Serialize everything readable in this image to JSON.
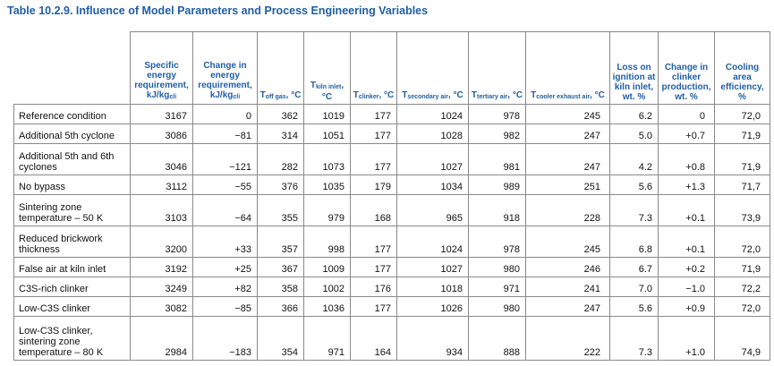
{
  "title": "Table 10.2.9. Influence of Model Parameters and Process Engineering Variables",
  "headers": [
    {
      "pre": "Specific energy requirement, kJ/kg",
      "sub": "cli",
      "post": ""
    },
    {
      "pre": "Change in energy requirement, kJ/kg",
      "sub": "cli",
      "post": ""
    },
    {
      "pre": "T",
      "sub": "off gas",
      "post": ", °C"
    },
    {
      "pre": "T",
      "sub": "kiln inlet",
      "post": ", °C"
    },
    {
      "pre": "T",
      "sub": "clinker",
      "post": ", °C"
    },
    {
      "pre": "T",
      "sub": "secondary air",
      "post": ", °C"
    },
    {
      "pre": "T",
      "sub": "tertiary air",
      "post": ", °C"
    },
    {
      "pre": "T",
      "sub": "cooler exhaust air",
      "post": ", °C"
    },
    {
      "pre": "Loss on ignition at kiln inlet, wt. %",
      "sub": "",
      "post": ""
    },
    {
      "pre": "Change in clinker production, wt. %",
      "sub": "",
      "post": ""
    },
    {
      "pre": "Cooling area efficiency, %",
      "sub": "",
      "post": ""
    }
  ],
  "rows": [
    {
      "label": "Reference condition",
      "values": [
        "3167",
        "0",
        "362",
        "1019",
        "177",
        "1024",
        "978",
        "245",
        "6.2",
        "0",
        "72,0"
      ]
    },
    {
      "label": "Additional 5th cyclone",
      "values": [
        "3086",
        "−81",
        "314",
        "1051",
        "177",
        "1028",
        "982",
        "247",
        "5.0",
        "+0.7",
        "71,9"
      ]
    },
    {
      "label": "Additional 5th and 6th cyclones",
      "values": [
        "3046",
        "−121",
        "282",
        "1073",
        "177",
        "1027",
        "981",
        "247",
        "4.2",
        "+0.8",
        "71,9"
      ]
    },
    {
      "label": "No bypass",
      "values": [
        "3112",
        "−55",
        "376",
        "1035",
        "179",
        "1034",
        "989",
        "251",
        "5.6",
        "+1.3",
        "71,7"
      ]
    },
    {
      "label": "Sintering zone temperature – 50 K",
      "values": [
        "3103",
        "−64",
        "355",
        "979",
        "168",
        "965",
        "918",
        "228",
        "7.3",
        "+0.1",
        "73,9"
      ]
    },
    {
      "label": "Reduced brickwork thickness",
      "values": [
        "3200",
        "+33",
        "357",
        "998",
        "177",
        "1024",
        "978",
        "245",
        "6.8",
        "+0.1",
        "72,0"
      ]
    },
    {
      "label": "False air at kiln inlet",
      "values": [
        "3192",
        "+25",
        "367",
        "1009",
        "177",
        "1027",
        "980",
        "246",
        "6.7",
        "+0.2",
        "71,9"
      ]
    },
    {
      "label": "C3S-rich clinker",
      "values": [
        "3249",
        "+82",
        "358",
        "1002",
        "176",
        "1018",
        "971",
        "241",
        "7.0",
        "−1.0",
        "72,2"
      ]
    },
    {
      "label": "Low-C3S clinker",
      "values": [
        "3082",
        "−85",
        "366",
        "1036",
        "177",
        "1026",
        "980",
        "247",
        "5.6",
        "+0.9",
        "72,0"
      ]
    },
    {
      "label": "Low-C3S clinker, sintering zone temperature – 80 K",
      "values": [
        "2984",
        "−183",
        "354",
        "971",
        "164",
        "934",
        "888",
        "222",
        "7.3",
        "+1.0",
        "74,9"
      ]
    }
  ]
}
